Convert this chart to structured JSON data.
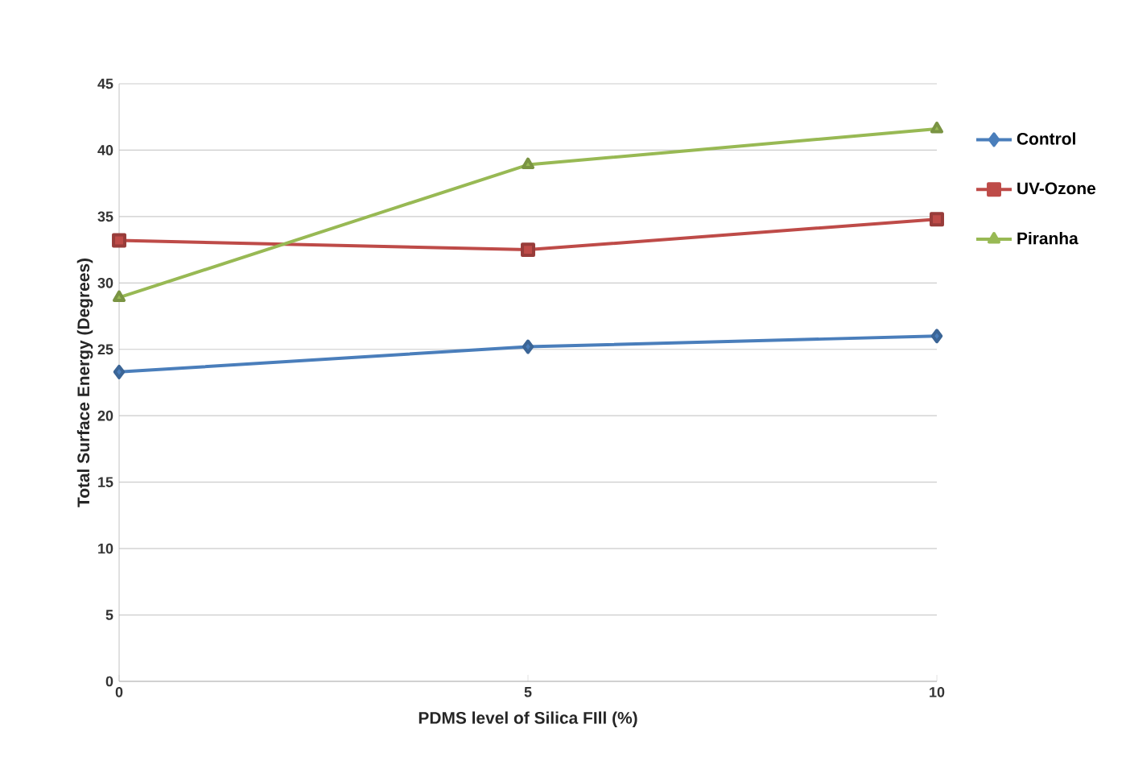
{
  "chart_data": {
    "type": "line",
    "xlabel": "PDMS level of Silica FIll (%)",
    "ylabel": "Total Surface Energy (Degrees)",
    "x": [
      0,
      5,
      10
    ],
    "xlim": [
      0,
      10
    ],
    "xticks": [
      0,
      5,
      10
    ],
    "ylim": [
      0,
      45
    ],
    "yticks": [
      0,
      5,
      10,
      15,
      20,
      25,
      30,
      35,
      40,
      45
    ],
    "grid": "y",
    "legend": "right",
    "series": [
      {
        "name": "Control",
        "color": "#4a7ebb",
        "marker": "diamond",
        "values": [
          23.3,
          25.2,
          26.0
        ]
      },
      {
        "name": "UV-Ozone",
        "color": "#be4b48",
        "marker": "square",
        "values": [
          33.2,
          32.5,
          34.8
        ]
      },
      {
        "name": "Piranha",
        "color": "#98b954",
        "marker": "triangle",
        "values": [
          28.9,
          38.9,
          41.6
        ]
      }
    ]
  }
}
